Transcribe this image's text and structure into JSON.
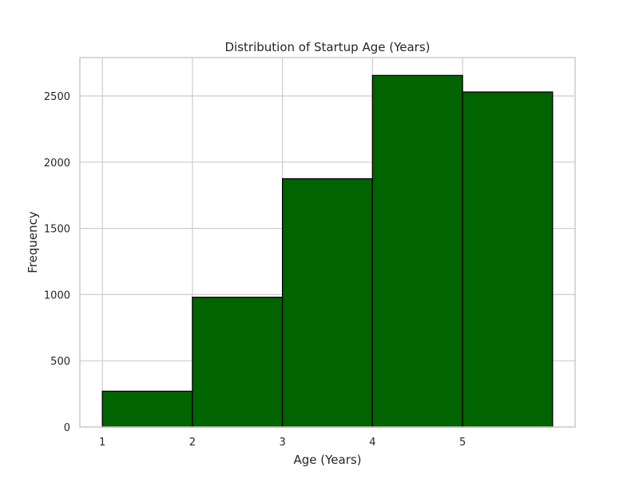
{
  "chart_data": {
    "type": "bar",
    "title": "Distribution of Startup Age (Years)",
    "xlabel": "Age (Years)",
    "ylabel": "Frequency",
    "bins": [
      {
        "start": 1,
        "end": 2,
        "value": 270
      },
      {
        "start": 2,
        "end": 3,
        "value": 980
      },
      {
        "start": 3,
        "end": 4,
        "value": 1875
      },
      {
        "start": 4,
        "end": 5,
        "value": 2655
      },
      {
        "start": 5,
        "end": 6,
        "value": 2530
      }
    ],
    "xlim": [
      0.75,
      6.25
    ],
    "ylim": [
      0,
      2790
    ],
    "xticks": [
      1,
      2,
      3,
      4,
      5
    ],
    "yticks": [
      0,
      500,
      1000,
      1500,
      2000,
      2500
    ],
    "grid": true,
    "bar_color": "#006400",
    "edge_color": "#000000",
    "grid_color": "#cccccc",
    "spine_color": "#cccccc"
  }
}
